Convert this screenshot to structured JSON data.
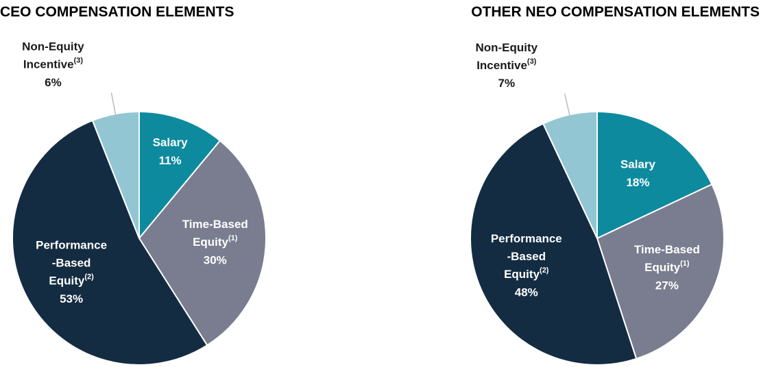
{
  "chart_data": [
    {
      "type": "pie",
      "title": "CEO COMPENSATION ELEMENTS",
      "categories": [
        "Salary",
        "Time-Based Equity(1)",
        "Performance-Based Equity(2)",
        "Non-Equity Incentive(3)"
      ],
      "values": [
        11,
        30,
        53,
        6
      ],
      "value_labels": [
        "11%",
        "30%",
        "53%",
        "6%"
      ],
      "colors": [
        "#0e8a9e",
        "#7a7d8f",
        "#142c42",
        "#93c6d3"
      ]
    },
    {
      "type": "pie",
      "title": "OTHER NEO COMPENSATION ELEMENTS",
      "categories": [
        "Salary",
        "Time-Based Equity(1)",
        "Performance-Based Equity(2)",
        "Non-Equity Incentive(3)"
      ],
      "values": [
        18,
        27,
        48,
        7
      ],
      "value_labels": [
        "18%",
        "27%",
        "48%",
        "7%"
      ],
      "colors": [
        "#0e8a9e",
        "#7a7d8f",
        "#142c42",
        "#93c6d3"
      ]
    }
  ]
}
